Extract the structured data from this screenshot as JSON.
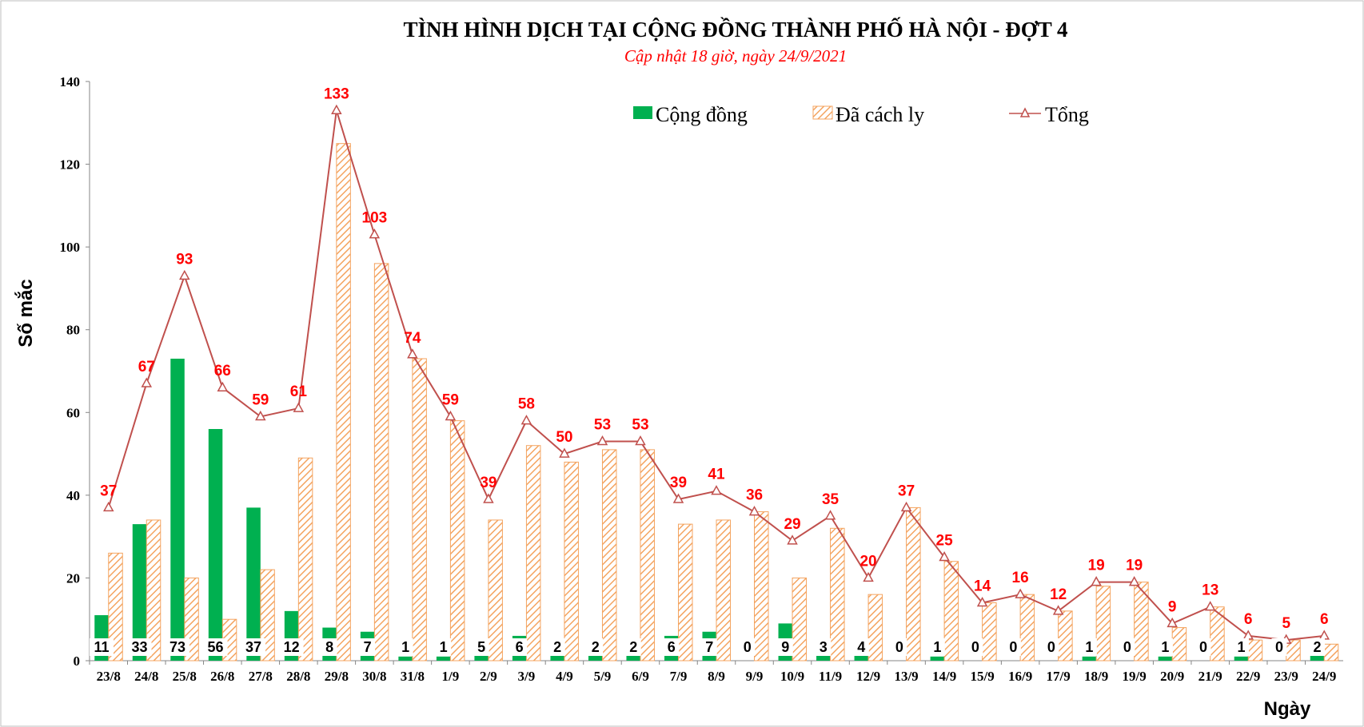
{
  "chart_data": {
    "type": "bar+line",
    "title": "TÌNH HÌNH DỊCH TẠI CỘNG ĐỒNG THÀNH PHỐ HÀ NỘI - ĐỢT 4",
    "subtitle": "Cập nhật 18 giờ, ngày 24/9/2021",
    "xlabel": "Ngày",
    "ylabel": "Số mắc",
    "ylim": [
      0,
      140
    ],
    "yticks": [
      0,
      20,
      40,
      60,
      80,
      100,
      120,
      140
    ],
    "grid": false,
    "legend_position": "top",
    "categories": [
      "23/8",
      "24/8",
      "25/8",
      "26/8",
      "27/8",
      "28/8",
      "29/8",
      "30/8",
      "31/8",
      "1/9",
      "2/9",
      "3/9",
      "4/9",
      "5/9",
      "6/9",
      "7/9",
      "8/9",
      "9/9",
      "10/9",
      "11/9",
      "12/9",
      "13/9",
      "14/9",
      "15/9",
      "16/9",
      "17/9",
      "18/9",
      "19/9",
      "20/9",
      "21/9",
      "22/9",
      "23/9",
      "24/9"
    ],
    "series": [
      {
        "name": "Cộng đồng",
        "type": "bar",
        "color": "#00b050",
        "values": [
          11,
          33,
          73,
          56,
          37,
          12,
          8,
          7,
          1,
          1,
          5,
          6,
          2,
          2,
          2,
          6,
          7,
          0,
          9,
          3,
          4,
          0,
          1,
          0,
          0,
          0,
          1,
          0,
          1,
          0,
          1,
          0,
          2
        ]
      },
      {
        "name": "Đã cách ly",
        "type": "bar-hatched",
        "color": "#f4a460",
        "values": [
          26,
          34,
          20,
          10,
          22,
          49,
          125,
          96,
          73,
          58,
          34,
          52,
          48,
          51,
          51,
          33,
          34,
          36,
          20,
          32,
          16,
          37,
          24,
          14,
          16,
          12,
          18,
          19,
          8,
          13,
          5,
          5,
          4
        ]
      },
      {
        "name": "Tổng",
        "type": "line",
        "color": "#c0504d",
        "label_color": "#ff0000",
        "values": [
          37,
          67,
          93,
          66,
          59,
          61,
          133,
          103,
          74,
          59,
          39,
          58,
          50,
          53,
          53,
          39,
          41,
          36,
          29,
          35,
          20,
          37,
          25,
          14,
          16,
          12,
          19,
          19,
          9,
          13,
          6,
          5,
          6
        ]
      }
    ]
  }
}
